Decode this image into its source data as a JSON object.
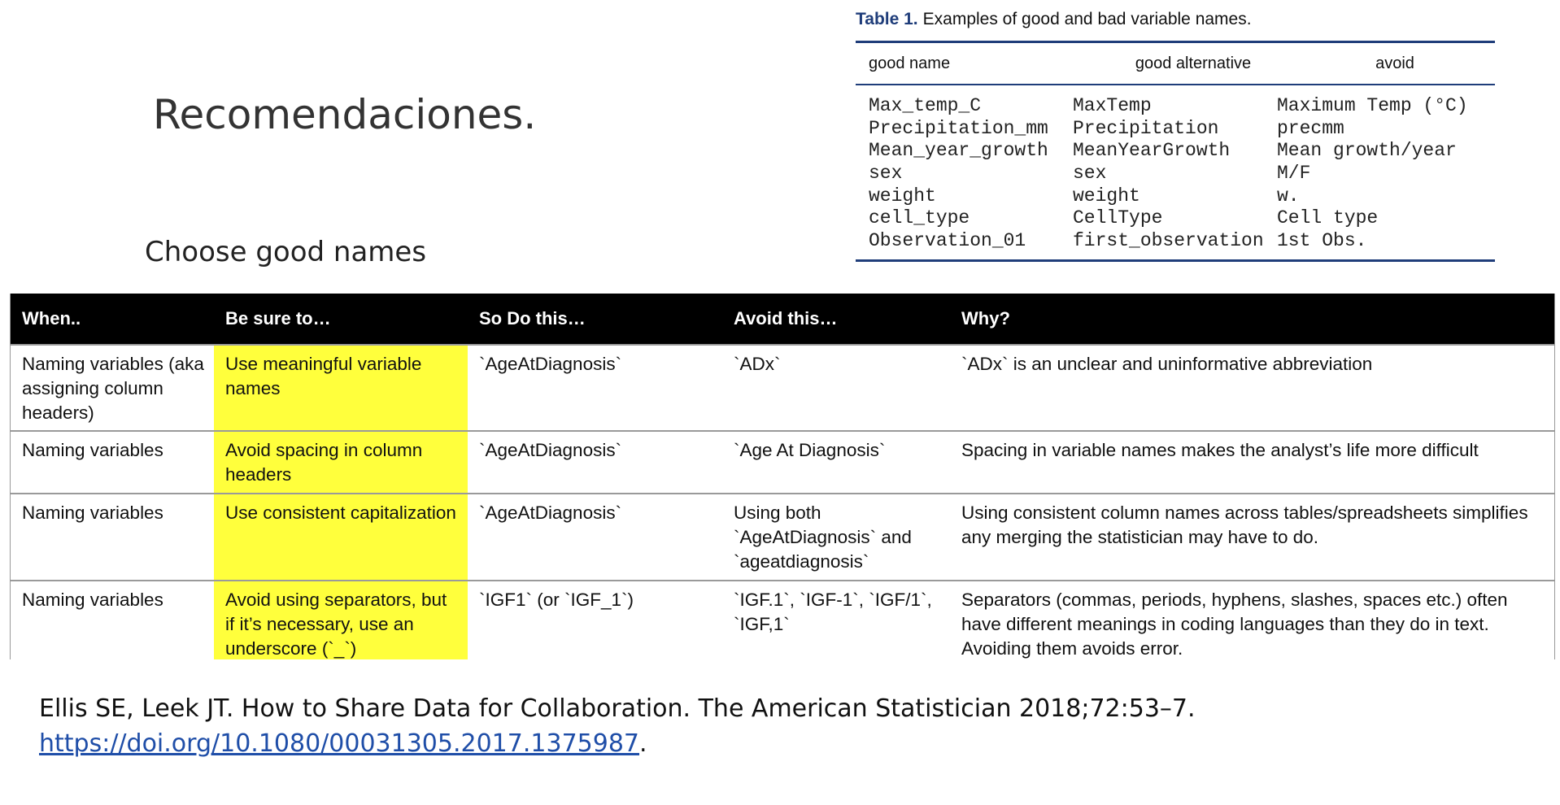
{
  "slide": {
    "title": "Recomendaciones.",
    "subtitle": "Choose good names"
  },
  "table1": {
    "label": "Table 1.",
    "caption": "Examples of good and bad variable names.",
    "headers": [
      "good name",
      "good alternative",
      "avoid"
    ],
    "rows": [
      [
        "Max_temp_C",
        "MaxTemp",
        "Maximum Temp (°C)"
      ],
      [
        "Precipitation_mm",
        "Precipitation",
        "precmm"
      ],
      [
        "Mean_year_growth",
        "MeanYearGrowth",
        "Mean growth/year"
      ],
      [
        "sex",
        "sex",
        "M/F"
      ],
      [
        "weight",
        "weight",
        "w."
      ],
      [
        "cell_type",
        "CellType",
        "Cell type"
      ],
      [
        "Observation_01",
        "first_observation",
        "1st Obs."
      ]
    ]
  },
  "main_table": {
    "headers": [
      "When..",
      "Be sure to…",
      "So Do this…",
      "Avoid this…",
      "Why?"
    ],
    "rows": [
      [
        "Naming variables (aka assigning column headers)",
        "Use meaningful variable names",
        "`AgeAtDiagnosis`",
        "`ADx`",
        "`ADx` is an unclear and uninformative abbreviation"
      ],
      [
        "Naming variables",
        "Avoid spacing in column headers",
        "`AgeAtDiagnosis`",
        "`Age At Diagnosis`",
        "Spacing in variable names makes the analyst’s life more difficult"
      ],
      [
        "Naming variables",
        "Use consistent capitalization",
        "`AgeAtDiagnosis`",
        "Using both `AgeAtDiagnosis` and `ageatdiagnosis`",
        "Using consistent column names across tables/spreadsheets simplifies any merging the statistician may have to do."
      ],
      [
        "Naming variables",
        "Avoid using separators, but if it’s necessary, use an underscore (`_`)",
        "`IGF1` (or `IGF_1`)",
        "`IGF.1`, `IGF-1`, `IGF/1`, `IGF,1`",
        "Separators (commas, periods, hyphens, slashes, spaces etc.) often have different meanings in coding languages than they do in text. Avoiding them avoids error."
      ]
    ]
  },
  "reference": {
    "citation": "Ellis SE, Leek JT. How to Share Data for Collaboration. The American Statistician 2018;72:53–7.",
    "link": "https://doi.org/10.1080/00031305.2017.1375987",
    "trailing": "."
  },
  "colors": {
    "highlight": "#ffff3c",
    "table_rule": "#1f3d7a",
    "link": "#1f4ea8"
  }
}
